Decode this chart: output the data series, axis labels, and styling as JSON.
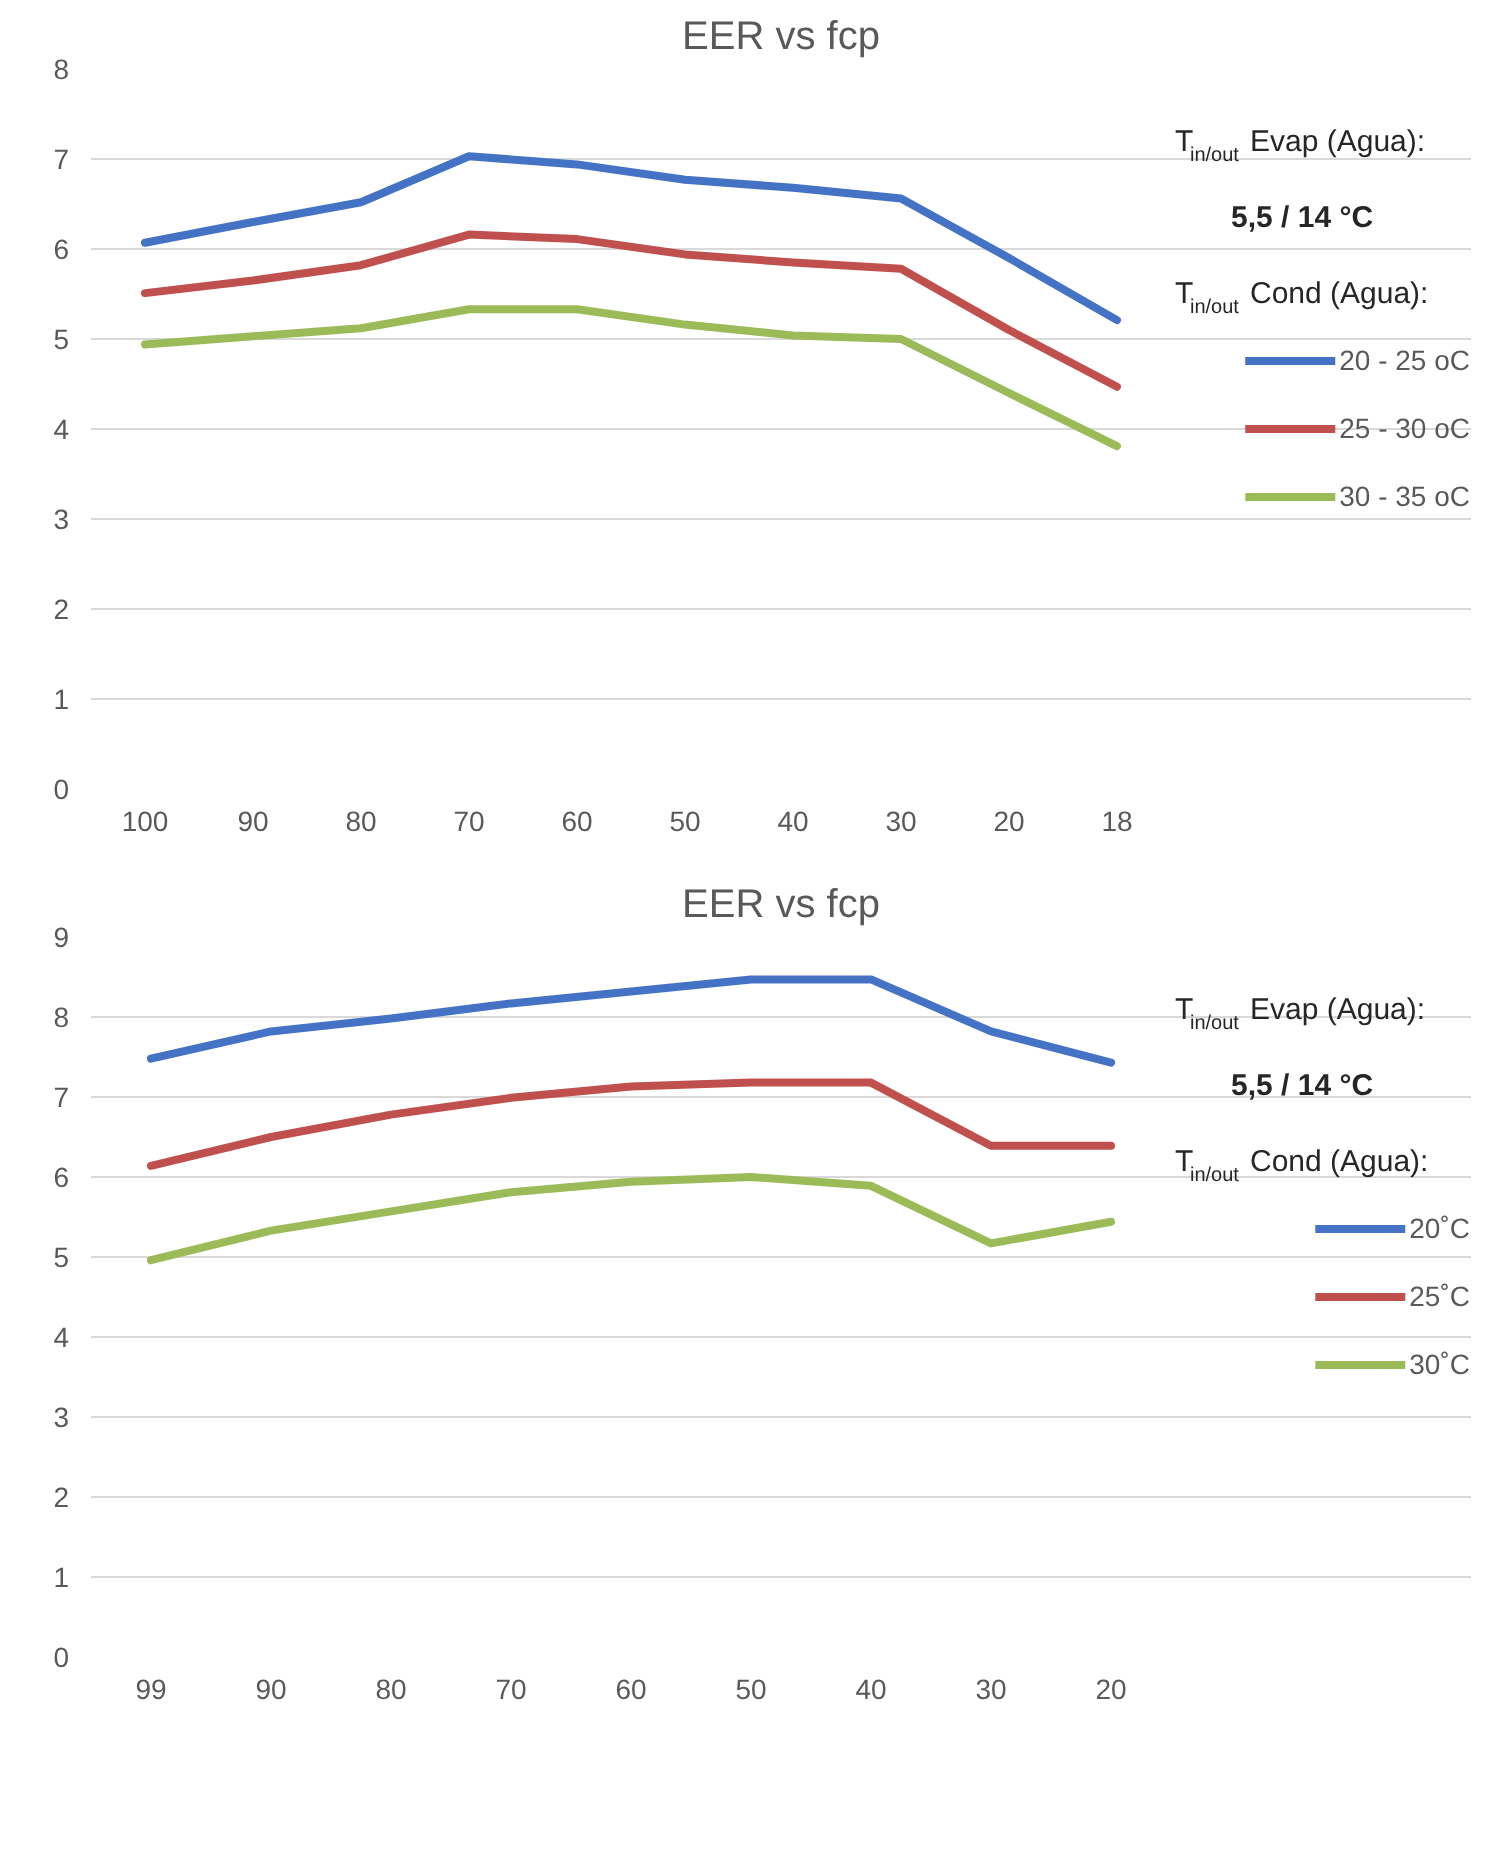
{
  "chart_data": [
    {
      "type": "line",
      "title": "EER vs fcp",
      "categories": [
        "100",
        "90",
        "80",
        "70",
        "60",
        "50",
        "40",
        "30",
        "20",
        "18"
      ],
      "ylim": [
        0,
        8
      ],
      "yticks": [
        0,
        1,
        2,
        3,
        4,
        5,
        6,
        7,
        8
      ],
      "grid": "y",
      "legend": "right",
      "marker": "none",
      "line_style": "solid",
      "annotations": [
        "T$_{in/out}$ Evap (Agua):",
        "5,5 / 14 °C",
        "T$_{in/out}$ Cond (Agua):"
      ],
      "series": [
        {
          "name": "20 - 25 oC",
          "color": "#4472c4",
          "values": [
            6.07,
            6.3,
            6.52,
            7.03,
            6.94,
            6.77,
            6.68,
            6.56,
            5.9,
            5.21
          ]
        },
        {
          "name": "25 - 30 oC",
          "color": "#c0504d",
          "values": [
            5.51,
            5.65,
            5.82,
            6.16,
            6.11,
            5.94,
            5.85,
            5.78,
            5.1,
            4.47
          ]
        },
        {
          "name": "30 - 35 oC",
          "color": "#9bbb59",
          "values": [
            4.94,
            5.03,
            5.12,
            5.33,
            5.33,
            5.16,
            5.04,
            5.0,
            4.4,
            3.81
          ]
        }
      ]
    },
    {
      "type": "line",
      "title": "EER vs fcp",
      "categories": [
        "99",
        "90",
        "80",
        "70",
        "60",
        "50",
        "40",
        "30",
        "20"
      ],
      "ylim": [
        0,
        9
      ],
      "yticks": [
        0,
        1,
        2,
        3,
        4,
        5,
        6,
        7,
        8,
        9
      ],
      "grid": "y",
      "legend": "right",
      "marker": "none",
      "line_style": "solid",
      "annotations": [
        "T$_{in/out}$ Evap (Agua):",
        "5,5 / 14 °C",
        "T$_{in/out}$ Cond (Agua):"
      ],
      "series": [
        {
          "name": "20˚C",
          "color": "#4472c4",
          "values": [
            7.48,
            7.82,
            7.98,
            8.17,
            8.32,
            8.47,
            8.47,
            7.82,
            7.43
          ]
        },
        {
          "name": "25˚C",
          "color": "#c0504d",
          "values": [
            6.14,
            6.5,
            6.78,
            6.99,
            7.13,
            7.18,
            7.18,
            6.39,
            6.39
          ]
        },
        {
          "name": "30˚C",
          "color": "#9bbb59",
          "values": [
            4.96,
            5.33,
            5.57,
            5.81,
            5.94,
            6.0,
            5.89,
            5.17,
            5.44
          ]
        }
      ]
    }
  ]
}
